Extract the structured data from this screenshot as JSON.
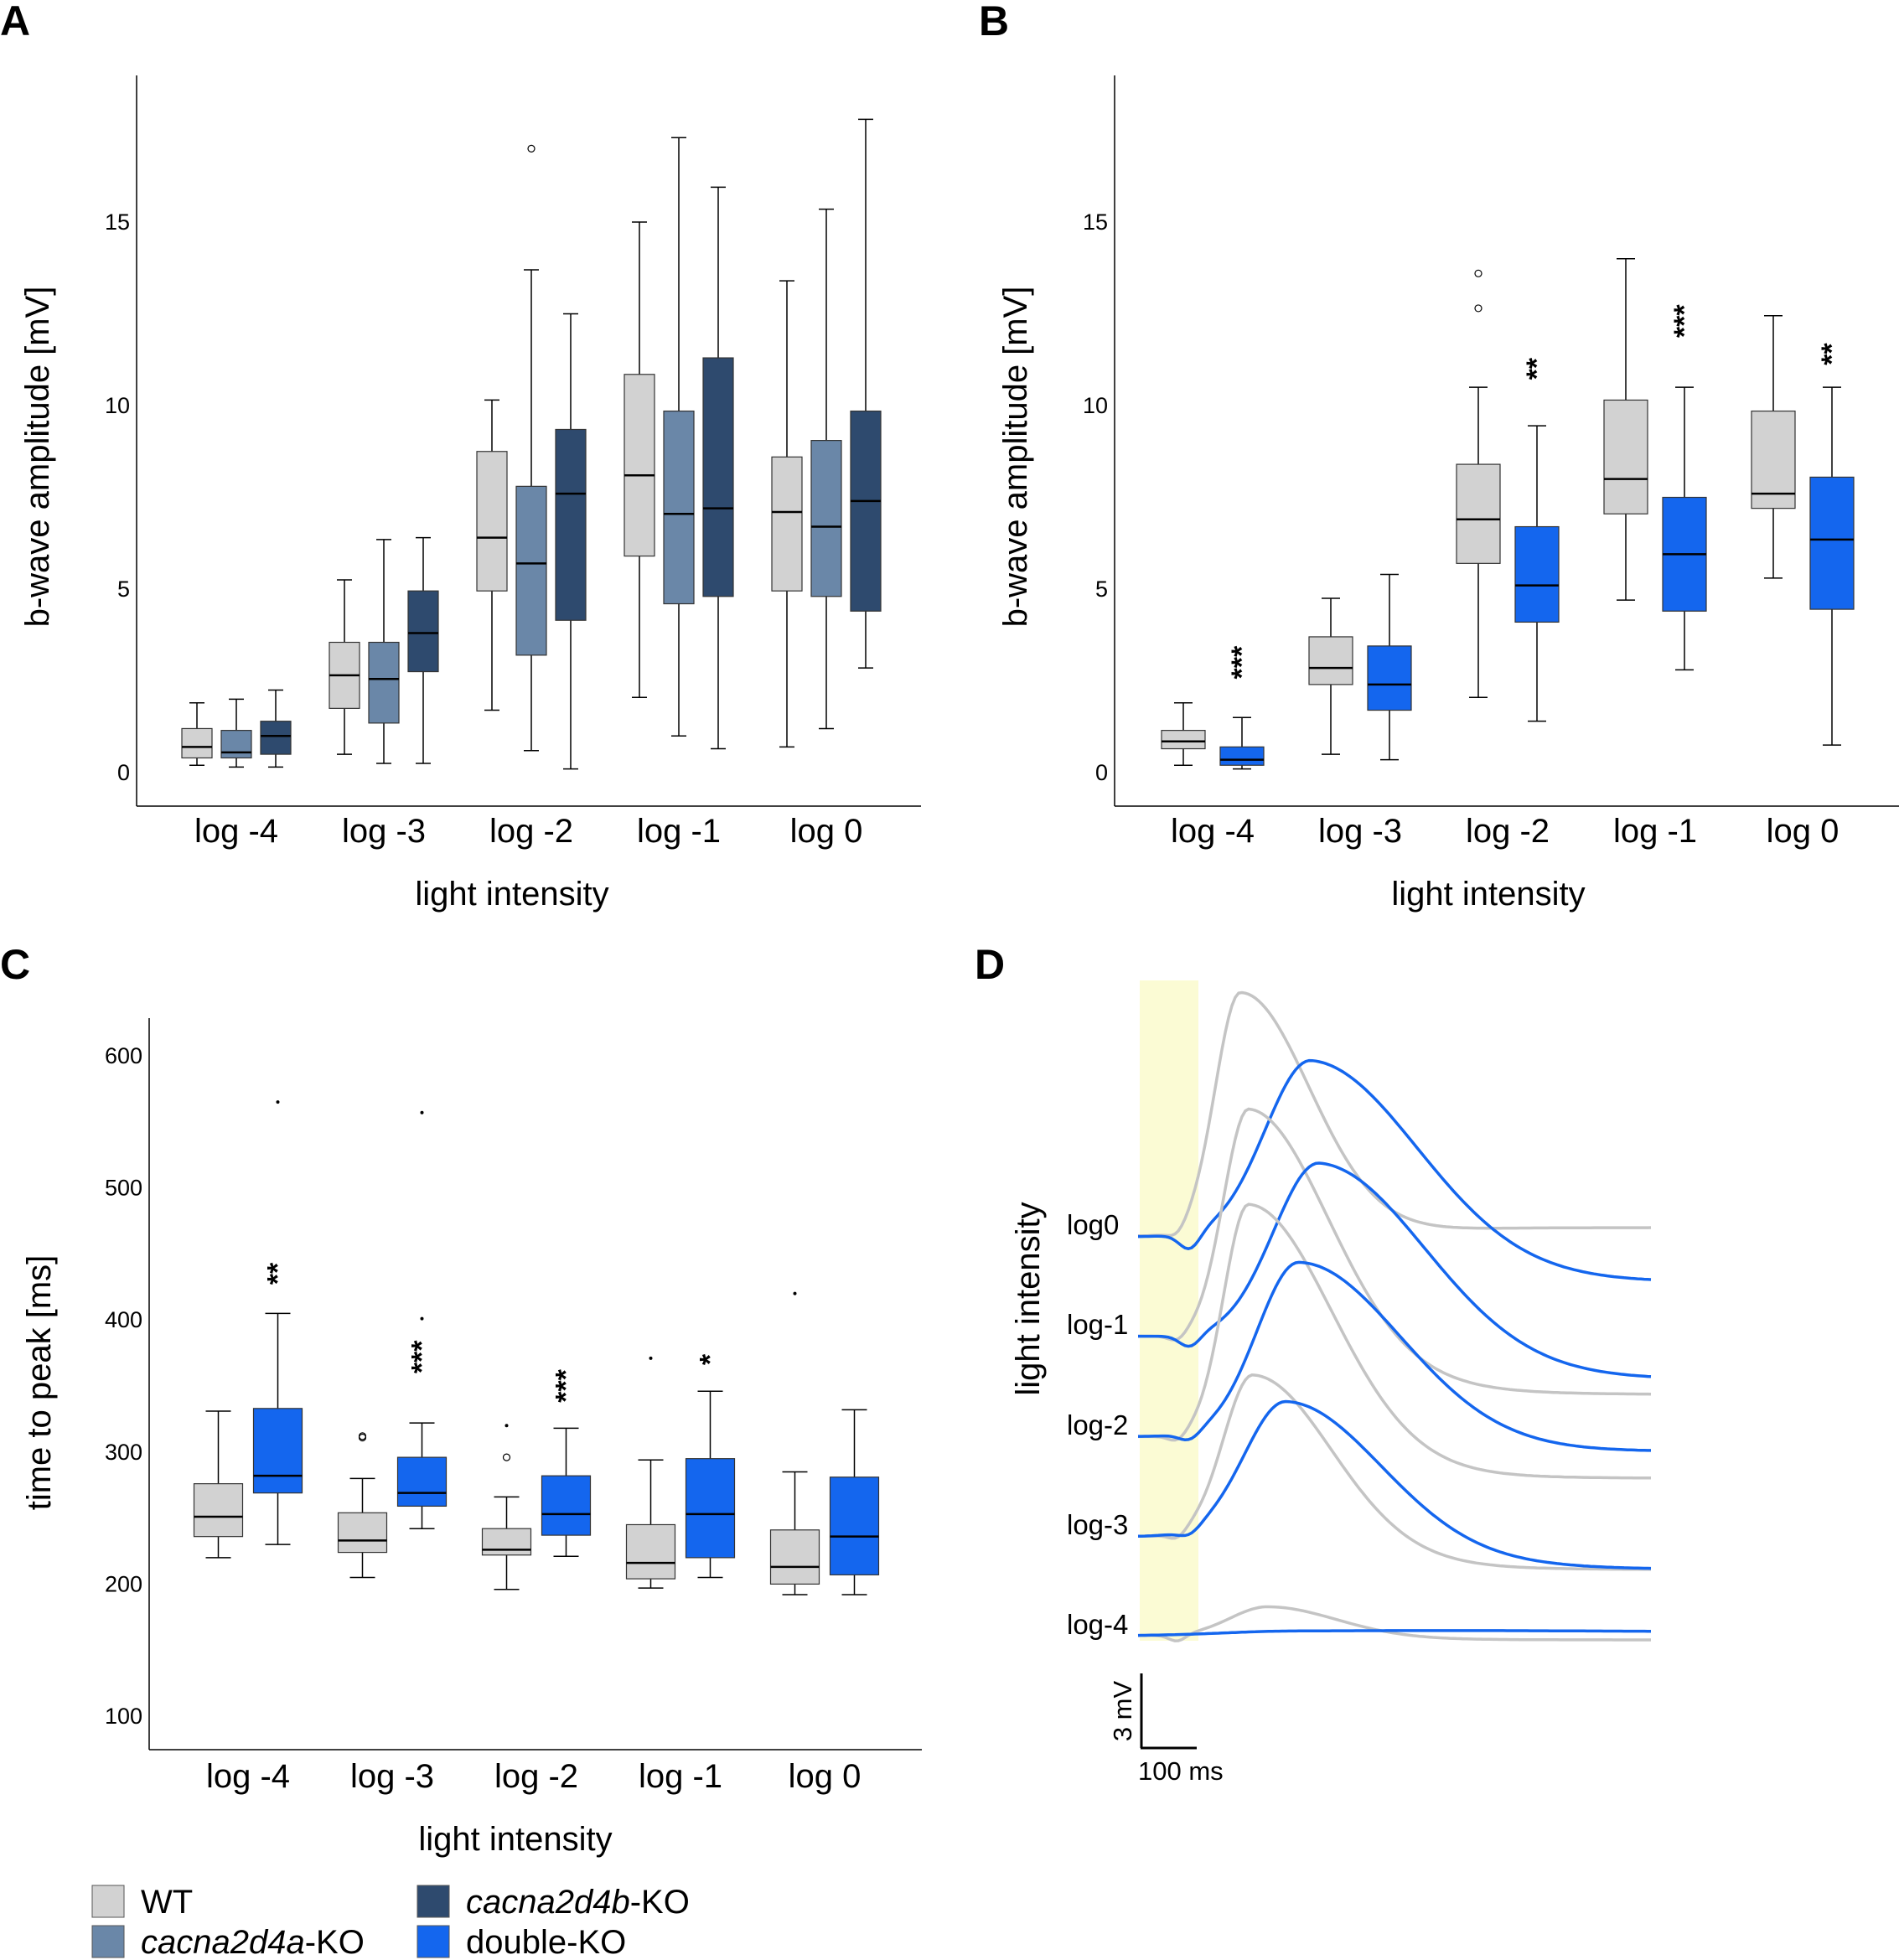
{
  "colors": {
    "WT": "#d2d2d2",
    "a_KO": "#6a87a8",
    "b_KO": "#2e4a6e",
    "double_KO": "#1466ee",
    "wt_trace": "#c4c4c4",
    "stimulus": "#fbfbd4"
  },
  "legend": {
    "items": [
      {
        "key": "WT",
        "text": "WT",
        "suffix": ""
      },
      {
        "key": "b_KO",
        "text": "cacna2d4b",
        "suffix": "-KO"
      },
      {
        "key": "a_KO",
        "text": "cacna2d4a",
        "suffix": "-KO"
      },
      {
        "key": "double_KO",
        "text": "double-KO",
        "suffix": ""
      }
    ]
  },
  "chart_data": [
    {
      "panel": "A",
      "type": "box",
      "xlabel": "light intensity",
      "ylabel": "b-wave amplitude [mV]",
      "ylim": [
        -1,
        19
      ],
      "yticks": [
        0,
        5,
        10,
        15
      ],
      "categories": [
        "log -4",
        "log -3",
        "log -2",
        "log -1",
        "log 0"
      ],
      "groups": [
        "WT",
        "a_KO",
        "b_KO"
      ],
      "boxes": [
        [
          {
            "lo": 0.2,
            "q1": 0.4,
            "med": 0.7,
            "q3": 1.2,
            "hi": 1.9,
            "out": []
          },
          {
            "lo": 0.15,
            "q1": 0.4,
            "med": 0.55,
            "q3": 1.15,
            "hi": 2.0,
            "out": []
          },
          {
            "lo": 0.15,
            "q1": 0.5,
            "med": 1.0,
            "q3": 1.4,
            "hi": 2.25,
            "out": []
          }
        ],
        [
          {
            "lo": 0.5,
            "q1": 1.75,
            "med": 2.65,
            "q3": 3.55,
            "hi": 5.25,
            "out": []
          },
          {
            "lo": 0.25,
            "q1": 1.35,
            "med": 2.55,
            "q3": 3.55,
            "hi": 6.35,
            "out": []
          },
          {
            "lo": 0.25,
            "q1": 2.75,
            "med": 3.8,
            "q3": 4.95,
            "hi": 6.4,
            "out": []
          }
        ],
        [
          {
            "lo": 1.7,
            "q1": 4.95,
            "med": 6.4,
            "q3": 8.75,
            "hi": 10.15,
            "out": []
          },
          {
            "lo": 0.6,
            "q1": 3.2,
            "med": 5.7,
            "q3": 7.8,
            "hi": 13.7,
            "out": [
              17.0
            ]
          },
          {
            "lo": 0.1,
            "q1": 4.15,
            "med": 7.6,
            "q3": 9.35,
            "hi": 12.5,
            "out": []
          }
        ],
        [
          {
            "lo": 2.05,
            "q1": 5.9,
            "med": 8.1,
            "q3": 10.85,
            "hi": 15.0,
            "out": []
          },
          {
            "lo": 1.0,
            "q1": 4.6,
            "med": 7.05,
            "q3": 9.85,
            "hi": 17.3,
            "out": []
          },
          {
            "lo": 0.65,
            "q1": 4.8,
            "med": 7.2,
            "q3": 11.3,
            "hi": 15.95,
            "out": []
          }
        ],
        [
          {
            "lo": 0.7,
            "q1": 4.95,
            "med": 7.1,
            "q3": 8.6,
            "hi": 13.4,
            "out": []
          },
          {
            "lo": 1.2,
            "q1": 4.8,
            "med": 6.7,
            "q3": 9.05,
            "hi": 15.35,
            "out": []
          },
          {
            "lo": 2.85,
            "q1": 4.4,
            "med": 7.4,
            "q3": 9.85,
            "hi": 17.8,
            "out": []
          }
        ]
      ],
      "significance": []
    },
    {
      "panel": "B",
      "type": "box",
      "xlabel": "light intensity",
      "ylabel": "b-wave amplitude [mV]",
      "ylim": [
        -1,
        19
      ],
      "yticks": [
        0,
        5,
        10,
        15
      ],
      "categories": [
        "log -4",
        "log -3",
        "log -2",
        "log -1",
        "log 0"
      ],
      "groups": [
        "WT",
        "double_KO"
      ],
      "boxes": [
        [
          {
            "lo": 0.2,
            "q1": 0.65,
            "med": 0.85,
            "q3": 1.15,
            "hi": 1.9,
            "out": []
          },
          {
            "lo": 0.1,
            "q1": 0.2,
            "med": 0.35,
            "q3": 0.7,
            "hi": 1.5,
            "out": []
          }
        ],
        [
          {
            "lo": 0.5,
            "q1": 2.4,
            "med": 2.85,
            "q3": 3.7,
            "hi": 4.75,
            "out": []
          },
          {
            "lo": 0.35,
            "q1": 1.7,
            "med": 2.4,
            "q3": 3.45,
            "hi": 5.4,
            "out": []
          }
        ],
        [
          {
            "lo": 2.05,
            "q1": 5.7,
            "med": 6.9,
            "q3": 8.4,
            "hi": 10.5,
            "out": [
              12.65,
              13.6
            ]
          },
          {
            "lo": 1.4,
            "q1": 4.1,
            "med": 5.1,
            "q3": 6.7,
            "hi": 9.45,
            "out": []
          }
        ],
        [
          {
            "lo": 4.7,
            "q1": 7.05,
            "med": 8.0,
            "q3": 10.15,
            "hi": 14.0,
            "out": []
          },
          {
            "lo": 2.8,
            "q1": 4.4,
            "med": 5.95,
            "q3": 7.5,
            "hi": 10.5,
            "out": []
          }
        ],
        [
          {
            "lo": 5.3,
            "q1": 7.2,
            "med": 7.6,
            "q3": 9.85,
            "hi": 12.45,
            "out": []
          },
          {
            "lo": 0.75,
            "q1": 4.45,
            "med": 6.35,
            "q3": 8.05,
            "hi": 10.5,
            "out": []
          }
        ]
      ],
      "significance": [
        {
          "category": 0,
          "group": 1,
          "stars": "***",
          "value": 3.0
        },
        {
          "category": 2,
          "group": 1,
          "stars": "**",
          "value": 11.0
        },
        {
          "category": 3,
          "group": 1,
          "stars": "***",
          "value": 12.3
        },
        {
          "category": 4,
          "group": 1,
          "stars": "**",
          "value": 11.4
        }
      ]
    },
    {
      "panel": "C",
      "type": "box",
      "xlabel": "light intensity",
      "ylabel": "time to peak [ms]",
      "ylim": [
        75,
        630
      ],
      "yticks": [
        100,
        200,
        300,
        400,
        500,
        600
      ],
      "categories": [
        "log -4",
        "log -3",
        "log -2",
        "log -1",
        "log 0"
      ],
      "groups": [
        "WT",
        "double_KO"
      ],
      "boxes": [
        [
          {
            "lo": 220,
            "q1": 236,
            "med": 251,
            "q3": 276,
            "hi": 331,
            "out": []
          },
          {
            "lo": 230,
            "q1": 269,
            "med": 282,
            "q3": 333,
            "hi": 405,
            "out": [
              565
            ]
          }
        ],
        [
          {
            "lo": 205,
            "q1": 224,
            "med": 233,
            "q3": 254,
            "hi": 280,
            "out": [
              311,
              312
            ]
          },
          {
            "lo": 242,
            "q1": 259,
            "med": 269,
            "q3": 296,
            "hi": 322,
            "out": [
              401,
              557
            ]
          }
        ],
        [
          {
            "lo": 196,
            "q1": 222,
            "med": 226,
            "q3": 242,
            "hi": 266,
            "out": [
              296,
              320
            ]
          },
          {
            "lo": 221,
            "q1": 237,
            "med": 253,
            "q3": 282,
            "hi": 318,
            "out": []
          }
        ],
        [
          {
            "lo": 197,
            "q1": 204,
            "med": 216,
            "q3": 245,
            "hi": 294,
            "out": [
              371
            ]
          },
          {
            "lo": 205,
            "q1": 220,
            "med": 253,
            "q3": 295,
            "hi": 346,
            "out": []
          }
        ],
        [
          {
            "lo": 192,
            "q1": 200,
            "med": 213,
            "q3": 241,
            "hi": 285,
            "out": [
              420
            ]
          },
          {
            "lo": 192,
            "q1": 207,
            "med": 236,
            "q3": 281,
            "hi": 332,
            "out": []
          }
        ]
      ],
      "significance": [
        {
          "category": 0,
          "group": 1,
          "stars": "**",
          "value": 435
        },
        {
          "category": 1,
          "group": 1,
          "stars": "***",
          "value": 372
        },
        {
          "category": 2,
          "group": 1,
          "stars": "***",
          "value": 350
        },
        {
          "category": 3,
          "group": 1,
          "stars": "*",
          "value": 370
        }
      ]
    },
    {
      "panel": "D",
      "type": "line",
      "ylabel": "light intensity",
      "trace_labels": [
        "log0",
        "log-1",
        "log-2",
        "log-3",
        "log-4"
      ],
      "scale_bar": {
        "y_label": "3 mV",
        "x_label": "100 ms"
      },
      "note": "ERG traces, WT (grey) and double-KO (blue) per intensity"
    }
  ]
}
